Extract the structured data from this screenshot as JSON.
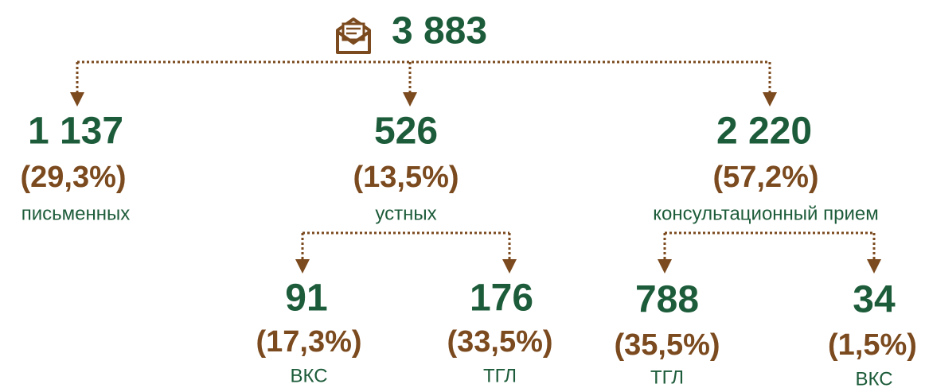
{
  "total": "3 883",
  "nodes": [
    {
      "value": "1 137",
      "percent": "(29,3%)",
      "label": "письменных"
    },
    {
      "value": "526",
      "percent": "(13,5%)",
      "label": "устных",
      "children": [
        {
          "value": "91",
          "percent": "(17,3%)",
          "label": "ВКС"
        },
        {
          "value": "176",
          "percent": "(33,5%)",
          "label": "ТГЛ"
        }
      ]
    },
    {
      "value": "2 220",
      "percent": "(57,2%)",
      "label": "консультационный прием",
      "children": [
        {
          "value": "788",
          "percent": "(35,5%)",
          "label": "ТГЛ"
        },
        {
          "value": "34",
          "percent": "(1,5%)",
          "label": "ВКС"
        }
      ]
    }
  ]
}
